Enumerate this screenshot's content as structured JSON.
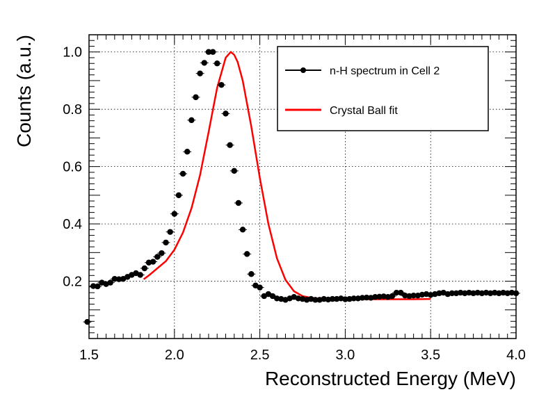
{
  "chart_data": {
    "type": "scatter",
    "title": "",
    "xlabel": "Reconstructed Energy (MeV)",
    "ylabel": "Counts (a.u.)",
    "xlim": [
      1.5,
      4.0
    ],
    "ylim": [
      0.0,
      1.06
    ],
    "xticks": [
      1.5,
      2.0,
      2.5,
      3.0,
      3.5,
      4.0
    ],
    "xtick_labels": [
      "1.5",
      "2.0",
      "2.5",
      "3.0",
      "3.5",
      "4.0"
    ],
    "yticks": [
      0.2,
      0.4,
      0.6,
      0.8,
      1.0
    ],
    "ytick_labels": [
      "0.2",
      "0.4",
      "0.6",
      "0.8",
      "1.0"
    ],
    "grid": true,
    "legend_position": "top-right",
    "colors": {
      "data": "#000000",
      "fit": "#ff0000"
    },
    "series": [
      {
        "name": "n-H spectrum in Cell 2",
        "kind": "points",
        "x": [
          1.49,
          1.525,
          1.55,
          1.575,
          1.6,
          1.625,
          1.65,
          1.675,
          1.7,
          1.725,
          1.75,
          1.775,
          1.8,
          1.825,
          1.85,
          1.875,
          1.9,
          1.925,
          1.95,
          1.975,
          2.0,
          2.025,
          2.05,
          2.075,
          2.1,
          2.125,
          2.15,
          2.175,
          2.2,
          2.225,
          2.25,
          2.275,
          2.3,
          2.325,
          2.35,
          2.375,
          2.4,
          2.425,
          2.45,
          2.475,
          2.5,
          2.525,
          2.55,
          2.575,
          2.6,
          2.625,
          2.65,
          2.675,
          2.7,
          2.725,
          2.75,
          2.775,
          2.8,
          2.825,
          2.85,
          2.875,
          2.9,
          2.925,
          2.95,
          2.975,
          3.0,
          3.025,
          3.05,
          3.075,
          3.1,
          3.125,
          3.15,
          3.175,
          3.2,
          3.225,
          3.25,
          3.275,
          3.3,
          3.325,
          3.35,
          3.375,
          3.4,
          3.425,
          3.45,
          3.475,
          3.5,
          3.525,
          3.55,
          3.575,
          3.6,
          3.625,
          3.65,
          3.675,
          3.7,
          3.725,
          3.75,
          3.775,
          3.8,
          3.825,
          3.85,
          3.875,
          3.9,
          3.925,
          3.95,
          3.975,
          4.0
        ],
        "y": [
          0.058,
          0.183,
          0.182,
          0.195,
          0.19,
          0.195,
          0.208,
          0.207,
          0.208,
          0.215,
          0.222,
          0.228,
          0.222,
          0.245,
          0.265,
          0.268,
          0.285,
          0.298,
          0.335,
          0.372,
          0.435,
          0.5,
          0.575,
          0.652,
          0.762,
          0.842,
          0.925,
          0.962,
          1.0,
          1.0,
          0.96,
          0.885,
          0.785,
          0.675,
          0.585,
          0.473,
          0.38,
          0.295,
          0.225,
          0.185,
          0.178,
          0.148,
          0.155,
          0.148,
          0.14,
          0.138,
          0.135,
          0.14,
          0.145,
          0.14,
          0.138,
          0.135,
          0.138,
          0.135,
          0.135,
          0.138,
          0.136,
          0.138,
          0.138,
          0.14,
          0.137,
          0.138,
          0.14,
          0.14,
          0.142,
          0.143,
          0.142,
          0.145,
          0.146,
          0.147,
          0.145,
          0.148,
          0.16,
          0.16,
          0.15,
          0.148,
          0.15,
          0.15,
          0.153,
          0.155,
          0.152,
          0.155,
          0.158,
          0.16,
          0.155,
          0.158,
          0.158,
          0.16,
          0.158,
          0.16,
          0.158,
          0.16,
          0.158,
          0.16,
          0.158,
          0.16,
          0.158,
          0.16,
          0.158,
          0.16,
          0.158
        ]
      },
      {
        "name": "Crystal Ball fit",
        "kind": "line",
        "x": [
          1.82,
          1.85,
          1.9,
          1.95,
          2.0,
          2.05,
          2.1,
          2.15,
          2.2,
          2.25,
          2.3,
          2.33,
          2.35,
          2.37,
          2.4,
          2.45,
          2.5,
          2.55,
          2.6,
          2.65,
          2.7,
          2.75,
          2.8,
          2.85,
          2.9,
          3.0,
          3.1,
          3.2,
          3.3,
          3.4,
          3.5
        ],
        "y": [
          0.207,
          0.22,
          0.245,
          0.27,
          0.31,
          0.37,
          0.455,
          0.57,
          0.72,
          0.875,
          0.98,
          1.0,
          0.99,
          0.965,
          0.9,
          0.74,
          0.56,
          0.4,
          0.28,
          0.205,
          0.165,
          0.148,
          0.142,
          0.139,
          0.138,
          0.137,
          0.137,
          0.137,
          0.137,
          0.137,
          0.138
        ]
      }
    ]
  }
}
